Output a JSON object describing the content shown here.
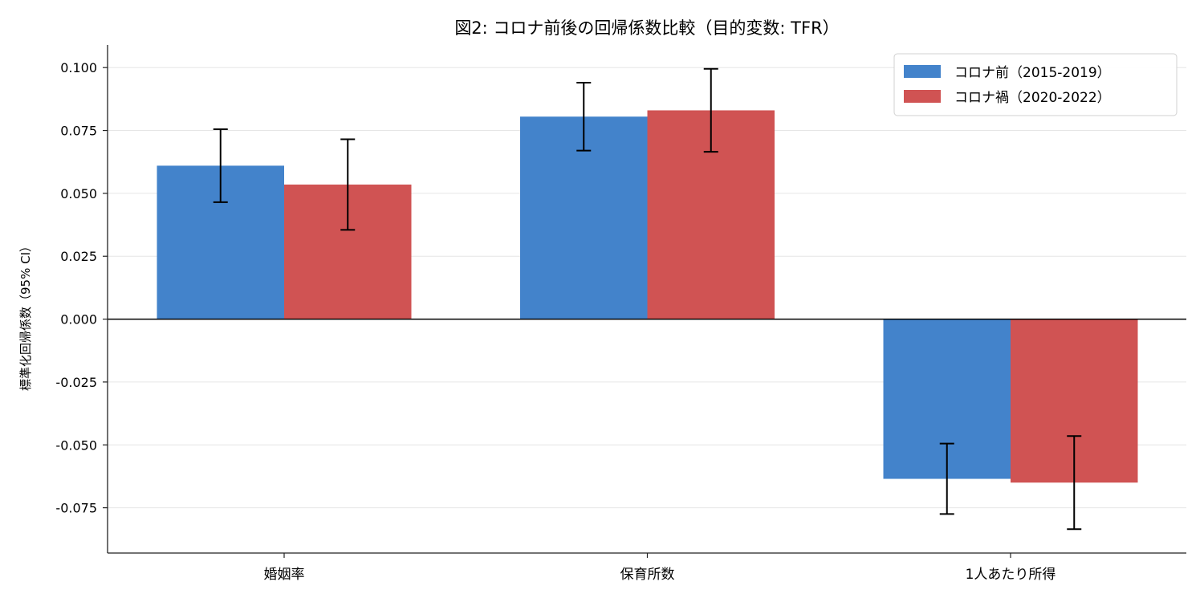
{
  "chart_data": {
    "type": "bar",
    "title": "図2: コロナ前後の回帰係数比較（目的変数: TFR）",
    "xlabel": "",
    "ylabel": "標準化回帰係数（95% CI）",
    "categories": [
      "婚姻率",
      "保育所数",
      "1人あたり所得"
    ],
    "series": [
      {
        "name": "コロナ前（2015-2019）",
        "color": "#4383cb",
        "values": [
          0.061,
          0.0805,
          -0.0635
        ],
        "ci_low": [
          0.0465,
          0.067,
          -0.0775
        ],
        "ci_high": [
          0.0755,
          0.094,
          -0.0495
        ]
      },
      {
        "name": "コロナ禍（2020-2022）",
        "color": "#d05353",
        "values": [
          0.0535,
          0.083,
          -0.065
        ],
        "ci_low": [
          0.0355,
          0.0665,
          -0.0835
        ],
        "ci_high": [
          0.0715,
          0.0995,
          -0.0465
        ]
      }
    ],
    "ylim": [
      -0.093,
      0.109
    ],
    "yticks": [
      0.1,
      0.075,
      0.05,
      0.025,
      0.0,
      -0.025,
      -0.05,
      -0.075
    ],
    "ytick_labels": [
      "0.100",
      "0.075",
      "0.050",
      "0.025",
      "0.000",
      "-0.025",
      "-0.050",
      "-0.075"
    ],
    "grid": "horizontal",
    "legend_position": "top-right"
  }
}
